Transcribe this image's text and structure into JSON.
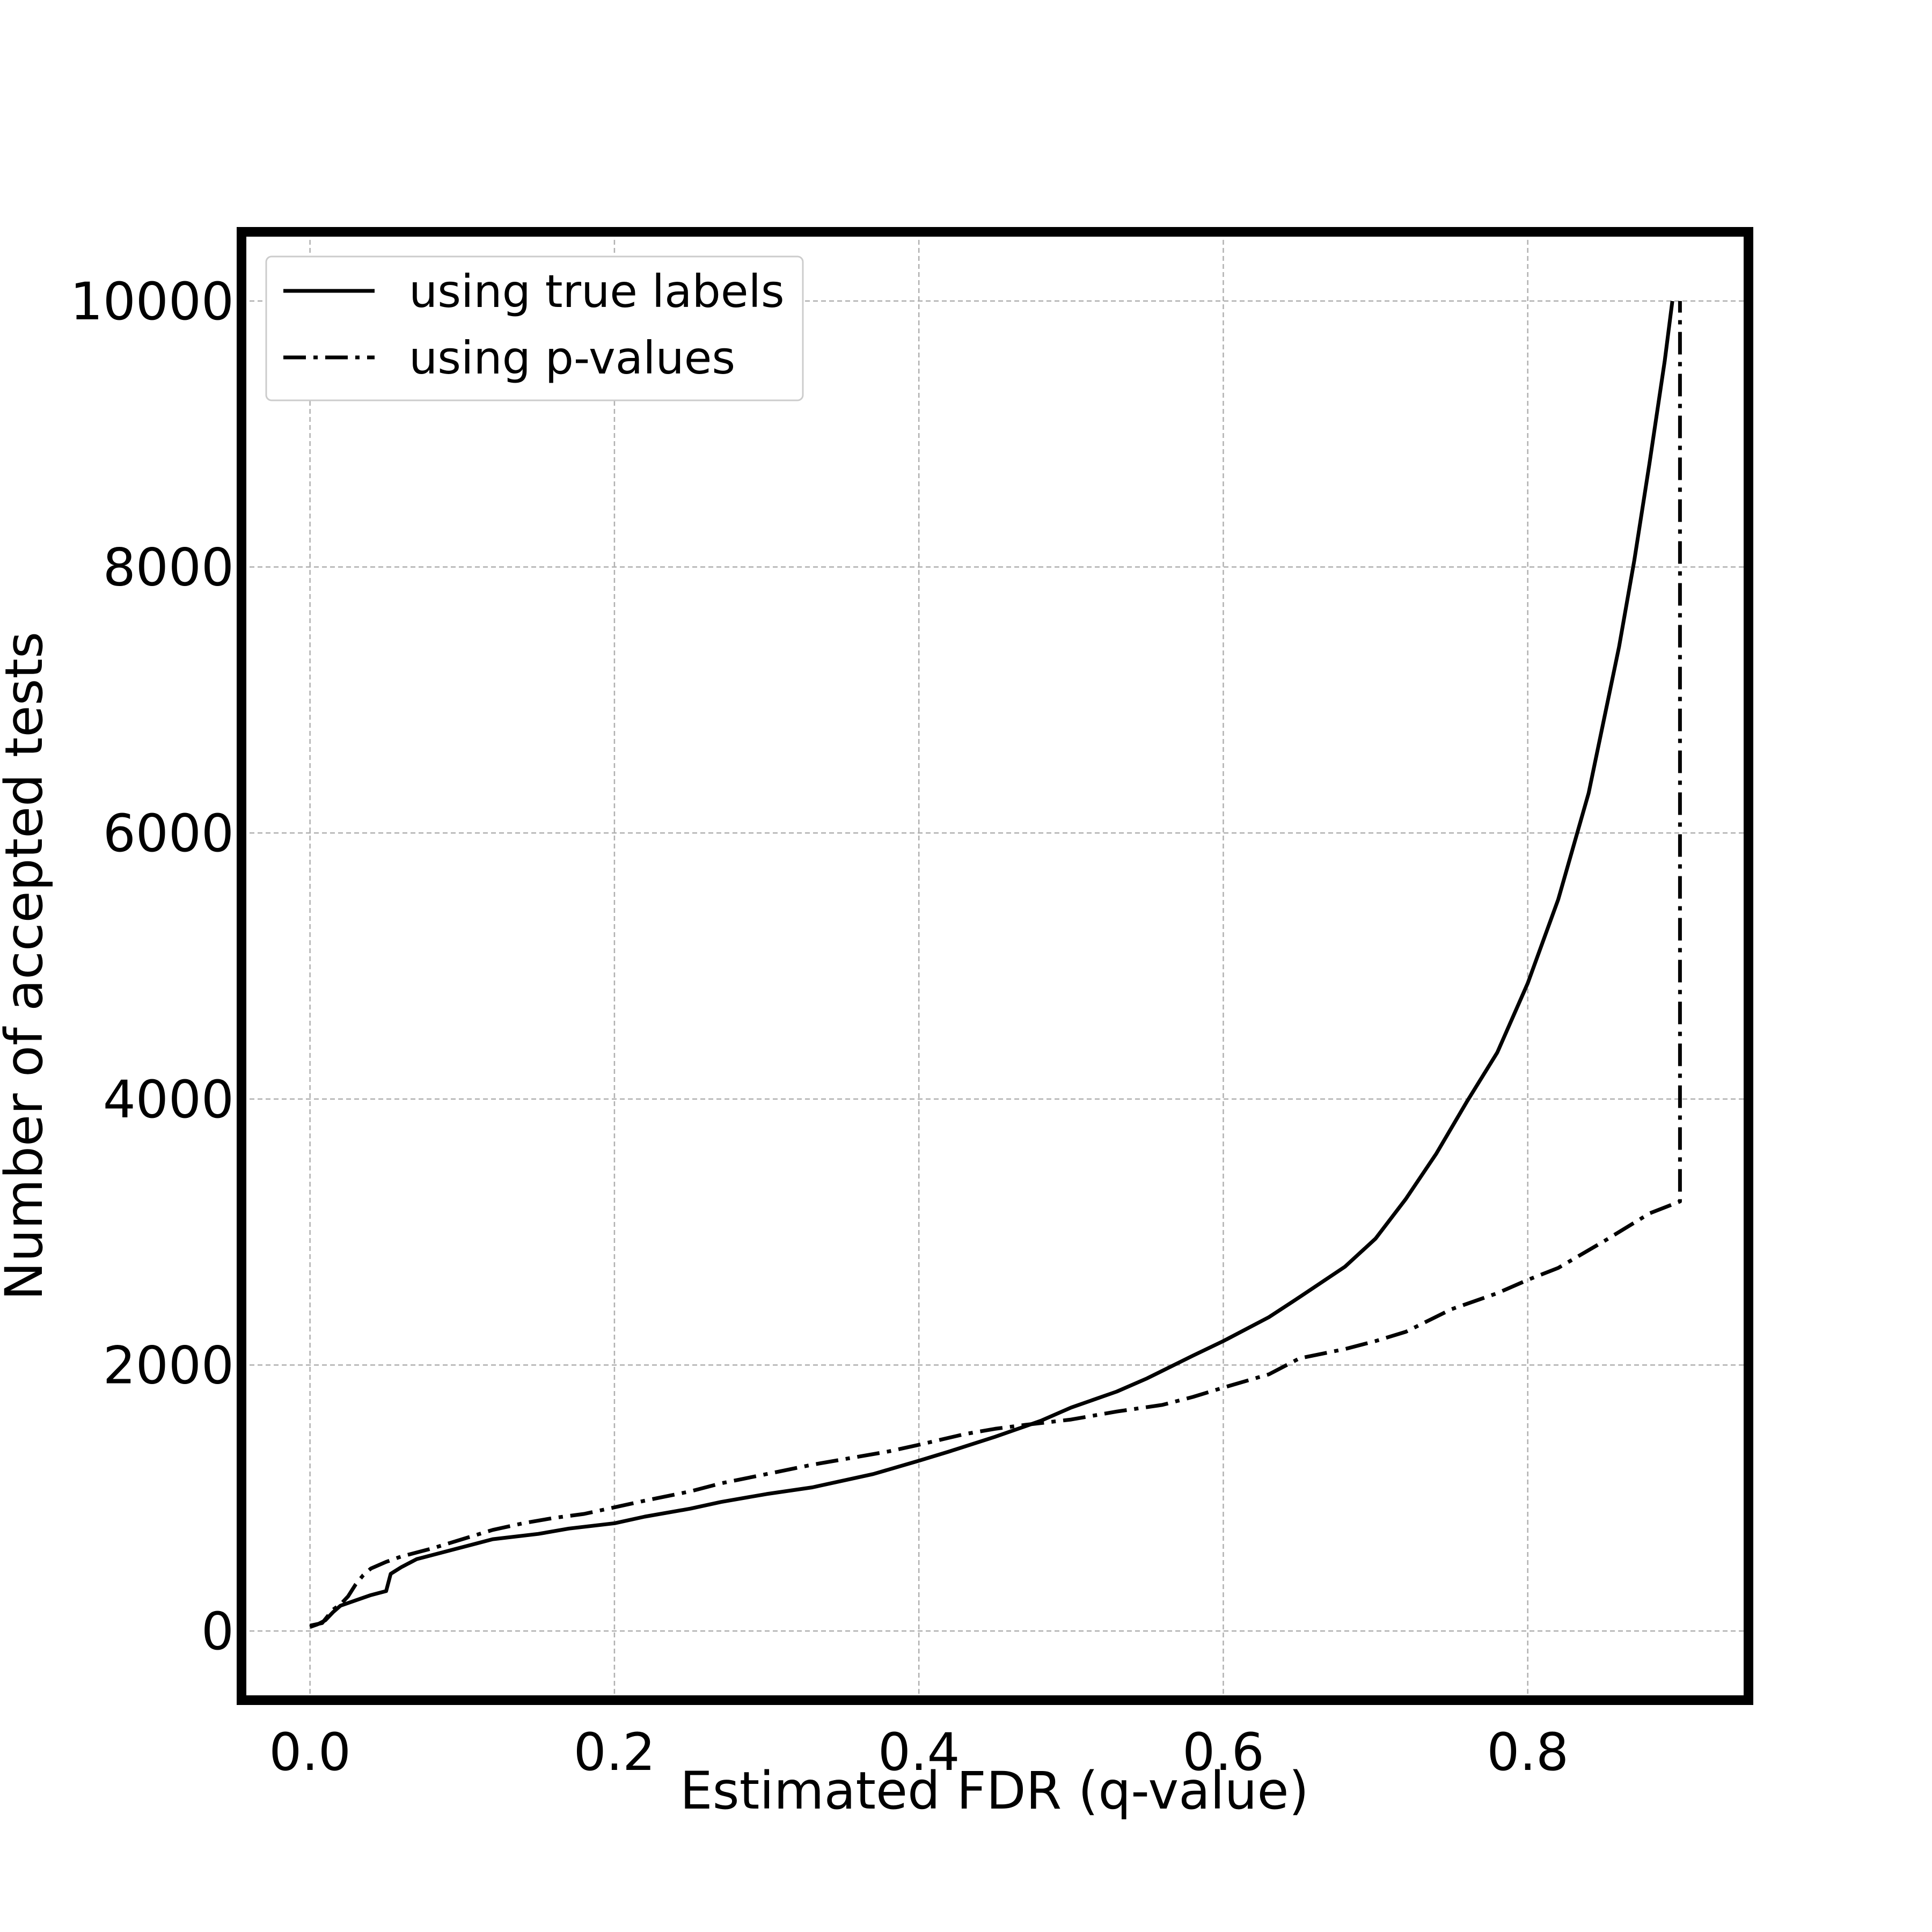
{
  "chart_data": {
    "type": "line",
    "title": "",
    "xlabel": "Estimated FDR (q-value)",
    "ylabel": "Number of accepted tests",
    "xlim": [
      -0.045,
      0.945
    ],
    "ylim": [
      -520,
      10520
    ],
    "x_ticks": [
      0.0,
      0.2,
      0.4,
      0.6,
      0.8
    ],
    "x_tick_labels": [
      "0.0",
      "0.2",
      "0.4",
      "0.6",
      "0.8"
    ],
    "y_ticks": [
      0,
      2000,
      4000,
      6000,
      8000,
      10000
    ],
    "y_tick_labels": [
      "0",
      "2000",
      "4000",
      "6000",
      "8000",
      "10000"
    ],
    "grid": true,
    "legend_position": "upper-left",
    "series": [
      {
        "name": "using true labels",
        "line_style": "solid",
        "color": "#000000",
        "x": [
          0.0,
          0.005,
          0.01,
          0.015,
          0.02,
          0.03,
          0.04,
          0.05,
          0.053,
          0.06,
          0.07,
          0.08,
          0.1,
          0.12,
          0.15,
          0.17,
          0.2,
          0.22,
          0.25,
          0.27,
          0.3,
          0.33,
          0.35,
          0.37,
          0.4,
          0.42,
          0.45,
          0.48,
          0.5,
          0.53,
          0.55,
          0.58,
          0.6,
          0.63,
          0.65,
          0.68,
          0.7,
          0.72,
          0.74,
          0.76,
          0.78,
          0.8,
          0.82,
          0.84,
          0.86,
          0.87,
          0.88,
          0.89,
          0.895
        ],
        "y": [
          30,
          50,
          80,
          140,
          190,
          230,
          270,
          300,
          430,
          480,
          540,
          570,
          630,
          690,
          730,
          770,
          810,
          860,
          920,
          970,
          1030,
          1080,
          1130,
          1180,
          1280,
          1350,
          1460,
          1580,
          1680,
          1800,
          1900,
          2070,
          2180,
          2360,
          2510,
          2740,
          2950,
          3250,
          3590,
          3980,
          4350,
          4870,
          5500,
          6300,
          7400,
          8050,
          8780,
          9550,
          10000
        ]
      },
      {
        "name": "using p-values",
        "line_style": "dashdot",
        "color": "#000000",
        "x": [
          0.0,
          0.008,
          0.015,
          0.02,
          0.025,
          0.03,
          0.035,
          0.04,
          0.05,
          0.06,
          0.08,
          0.1,
          0.12,
          0.14,
          0.16,
          0.18,
          0.2,
          0.22,
          0.25,
          0.27,
          0.3,
          0.33,
          0.35,
          0.38,
          0.4,
          0.43,
          0.45,
          0.47,
          0.5,
          0.53,
          0.56,
          0.58,
          0.6,
          0.63,
          0.65,
          0.68,
          0.7,
          0.72,
          0.75,
          0.78,
          0.8,
          0.82,
          0.85,
          0.88,
          0.9,
          0.9
        ],
        "y": [
          40,
          60,
          160,
          200,
          260,
          350,
          420,
          470,
          520,
          560,
          620,
          690,
          760,
          810,
          850,
          880,
          930,
          980,
          1050,
          1110,
          1180,
          1250,
          1290,
          1350,
          1400,
          1480,
          1520,
          1550,
          1590,
          1650,
          1700,
          1760,
          1830,
          1930,
          2050,
          2120,
          2180,
          2250,
          2420,
          2540,
          2640,
          2730,
          2930,
          3140,
          3230,
          10000
        ]
      }
    ]
  }
}
